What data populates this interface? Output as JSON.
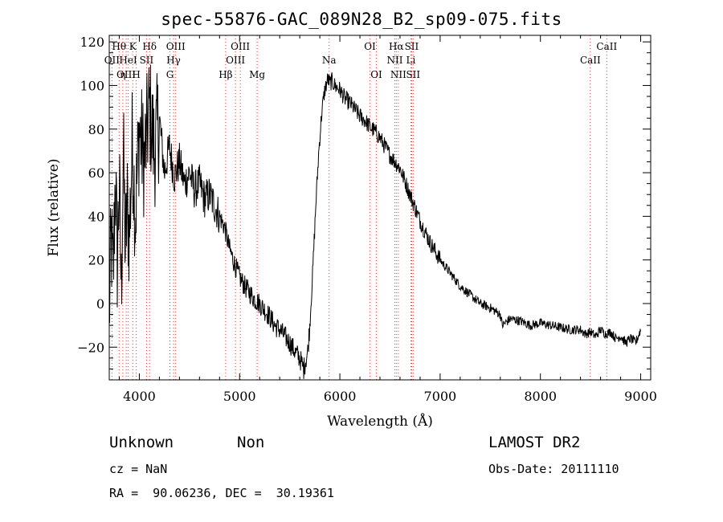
{
  "chart_data": {
    "type": "line",
    "title": "spec-55876-GAC_089N28_B2_sp09-075.fits",
    "xlabel": "Wavelength (Å)",
    "ylabel": "Flux (relative)",
    "xlim": [
      3700,
      9100
    ],
    "ylim": [
      -35,
      123
    ],
    "xticks": [
      4000,
      5000,
      6000,
      7000,
      8000,
      9000
    ],
    "yticks": [
      -20,
      0,
      20,
      40,
      60,
      80,
      100,
      120
    ],
    "grid": false,
    "series": [
      {
        "color": "#000000",
        "x": [
          3700,
          3720,
          3740,
          3760,
          3780,
          3800,
          3820,
          3840,
          3860,
          3880,
          3900,
          3930,
          3960,
          4000,
          4050,
          4100,
          4150,
          4200,
          4250,
          4300,
          4350,
          4400,
          4450,
          4500,
          4550,
          4600,
          4650,
          4700,
          4750,
          4800,
          4850,
          4900,
          4950,
          5000,
          5050,
          5100,
          5150,
          5200,
          5250,
          5300,
          5350,
          5400,
          5450,
          5500,
          5550,
          5600,
          5640,
          5680,
          5700,
          5730,
          5760,
          5790,
          5820,
          5850,
          5880,
          5900,
          5920,
          5950,
          6000,
          6050,
          6100,
          6150,
          6200,
          6250,
          6300,
          6350,
          6400,
          6450,
          6500,
          6550,
          6600,
          6650,
          6700,
          6750,
          6800,
          6850,
          6900,
          6950,
          7000,
          7100,
          7200,
          7300,
          7400,
          7500,
          7600,
          7620,
          7700,
          7800,
          7900,
          8000,
          8100,
          8200,
          8300,
          8400,
          8450,
          8500,
          8550,
          8600,
          8650,
          8700,
          8750,
          8800,
          8850,
          8900,
          8950,
          9000
        ],
        "y": [
          -5,
          30,
          10,
          60,
          20,
          55,
          5,
          70,
          25,
          45,
          30,
          75,
          40,
          80,
          65,
          90,
          70,
          85,
          60,
          72,
          58,
          65,
          55,
          60,
          52,
          55,
          48,
          50,
          45,
          40,
          35,
          25,
          18,
          12,
          8,
          5,
          2,
          0,
          -3,
          -6,
          -10,
          -12,
          -15,
          -18,
          -22,
          -25,
          -30,
          -22,
          -10,
          15,
          45,
          70,
          88,
          98,
          103,
          101,
          102,
          100,
          98,
          94,
          92,
          89,
          86,
          84,
          81,
          79,
          76,
          72,
          68,
          65,
          62,
          56,
          50,
          44,
          38,
          33,
          28,
          24,
          20,
          14,
          8,
          4,
          0,
          -2,
          -5,
          -10,
          -7,
          -8,
          -10,
          -9,
          -10,
          -11,
          -12,
          -12,
          -14,
          -13,
          -15,
          -12,
          -14,
          -13,
          -16,
          -15,
          -18,
          -16,
          -18,
          -12
        ]
      }
    ],
    "lines": [
      {
        "label": "Hθ",
        "x": 3798,
        "row": 0
      },
      {
        "label": "OII",
        "x": 3727,
        "row": 1
      },
      {
        "label": "OIII",
        "x": 3869,
        "row": 2
      },
      {
        "label": "K",
        "x": 3934,
        "row": 0
      },
      {
        "label": "HeI",
        "x": 3889,
        "row": 1
      },
      {
        "label": "η",
        "x": 3835,
        "row": 2
      },
      {
        "label": "SII",
        "x": 4072,
        "row": 1
      },
      {
        "label": "H",
        "x": 3969,
        "row": 2
      },
      {
        "label": "Hδ",
        "x": 4102,
        "row": 0
      },
      {
        "label": "OIII",
        "x": 4363,
        "row": 0
      },
      {
        "label": "Hγ",
        "x": 4341,
        "row": 1
      },
      {
        "label": "G",
        "x": 4305,
        "row": 2
      },
      {
        "label": "Hβ",
        "x": 4861,
        "row": 2
      },
      {
        "label": "OIII",
        "x": 5007,
        "row": 0
      },
      {
        "label": "OIII",
        "x": 4959,
        "row": 1
      },
      {
        "label": "Mg",
        "x": 5175,
        "row": 2
      },
      {
        "label": "Na",
        "x": 5893,
        "row": 1
      },
      {
        "label": "OI",
        "x": 6300,
        "row": 0
      },
      {
        "label": "OI",
        "x": 6364,
        "row": 2
      },
      {
        "label": "Hα",
        "x": 6563,
        "row": 0
      },
      {
        "label": "SII",
        "x": 6716,
        "row": 0
      },
      {
        "label": "NII",
        "x": 6548,
        "row": 1
      },
      {
        "label": "Li",
        "x": 6708,
        "row": 1
      },
      {
        "label": "NII",
        "x": 6583,
        "row": 2
      },
      {
        "label": "SII",
        "x": 6731,
        "row": 2
      },
      {
        "label": "CaII",
        "x": 8662,
        "row": 0
      },
      {
        "label": "CaII",
        "x": 8498,
        "row": 1
      }
    ]
  },
  "info": {
    "class_label": "Unknown",
    "subclass_label": "Non",
    "survey": "LAMOST DR2",
    "cz_text": "cz = NaN",
    "obs_date_text": "Obs-Date: 20111110",
    "coords_text": "RA =  90.06236, DEC =  30.19361"
  }
}
